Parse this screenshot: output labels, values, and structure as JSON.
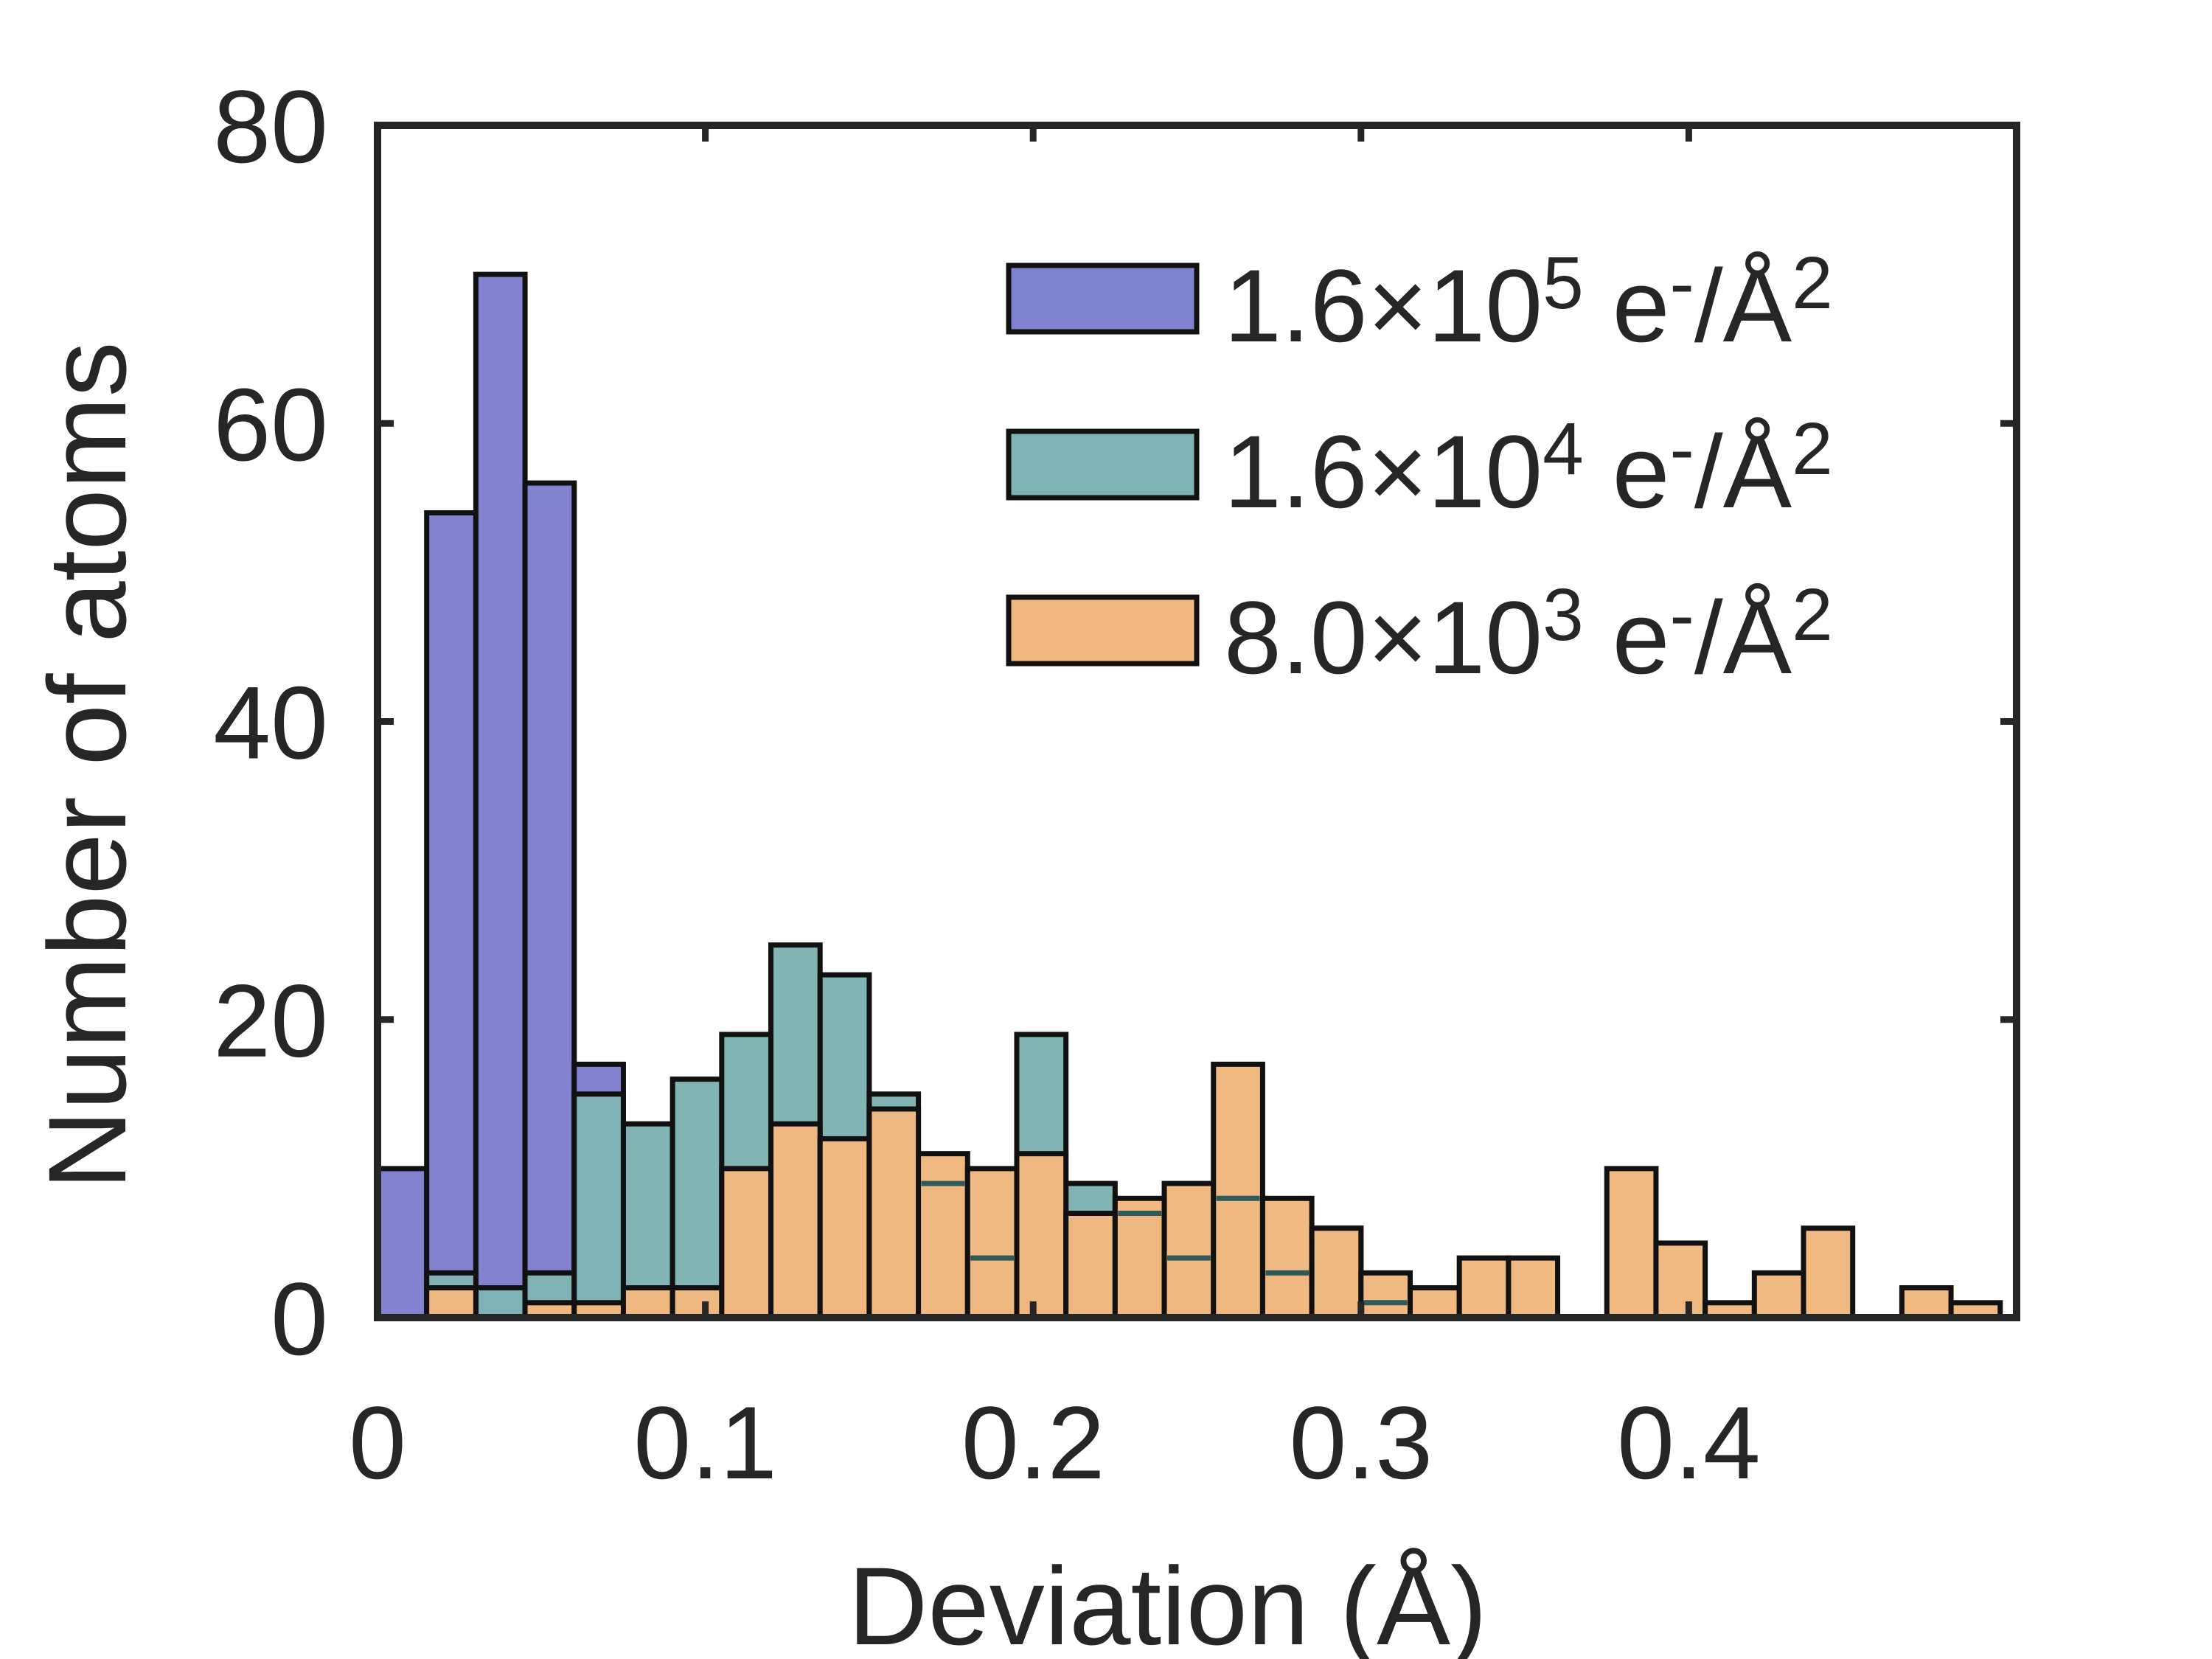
{
  "chart_data": {
    "type": "bar",
    "xlabel": "Deviation (Å)",
    "ylabel": "Number of atoms",
    "xlim": [
      0,
      0.5
    ],
    "ylim": [
      0,
      80
    ],
    "xticks": [
      "0",
      "0.1",
      "0.2",
      "0.3",
      "0.4"
    ],
    "yticks": [
      "0",
      "20",
      "40",
      "60",
      "80"
    ],
    "grid": false,
    "legend_position": "top-right",
    "bin_width": 0.015,
    "bin_centers": [
      0.0075,
      0.0225,
      0.0375,
      0.0525,
      0.0675,
      0.0825,
      0.0975,
      0.1125,
      0.1275,
      0.1425,
      0.1575,
      0.1725,
      0.1875,
      0.2025,
      0.2175,
      0.2325,
      0.2475,
      0.2625,
      0.2775,
      0.2925,
      0.3075,
      0.3225,
      0.3375,
      0.3525,
      0.3675,
      0.3825,
      0.3975,
      0.4125,
      0.4275,
      0.4425,
      0.4575,
      0.4725,
      0.4875
    ],
    "series": [
      {
        "legend_base": "1.6×10",
        "legend_exp": "5",
        "legend_unit": "e",
        "legend_sup": "-",
        "legend_tail": "/Å",
        "legend_sup2": "2",
        "color": "#8080d0",
        "values": [
          10,
          54,
          70,
          56,
          17,
          0,
          0,
          0,
          0,
          0,
          0,
          0,
          0,
          0,
          0,
          0,
          0,
          0,
          0,
          0,
          0,
          0,
          0,
          0,
          0,
          0,
          0,
          0,
          0,
          0,
          0,
          0,
          0
        ]
      },
      {
        "legend_base": "1.6×10",
        "legend_exp": "4",
        "legend_unit": "e",
        "legend_sup": "-",
        "legend_tail": "/Å",
        "legend_sup2": "2",
        "color": "#7fb3b3",
        "values": [
          0,
          3,
          2,
          3,
          15,
          13,
          16,
          19,
          25,
          23,
          15,
          9,
          4,
          19,
          9,
          7,
          4,
          8,
          3,
          6,
          1,
          0,
          0,
          0,
          0,
          0,
          0,
          0,
          0,
          0,
          0,
          0,
          0
        ]
      },
      {
        "legend_base": "8.0×10",
        "legend_exp": "3",
        "legend_unit": "e",
        "legend_sup": "-",
        "legend_tail": "/Å",
        "legend_sup2": "2",
        "color": "#f0b87e",
        "values": [
          0,
          2,
          0,
          1,
          1,
          2,
          2,
          10,
          13,
          12,
          14,
          11,
          10,
          11,
          7,
          8,
          9,
          17,
          8,
          6,
          3,
          2,
          4,
          4,
          0,
          10,
          5,
          1,
          3,
          6,
          0,
          2,
          1
        ]
      }
    ]
  }
}
